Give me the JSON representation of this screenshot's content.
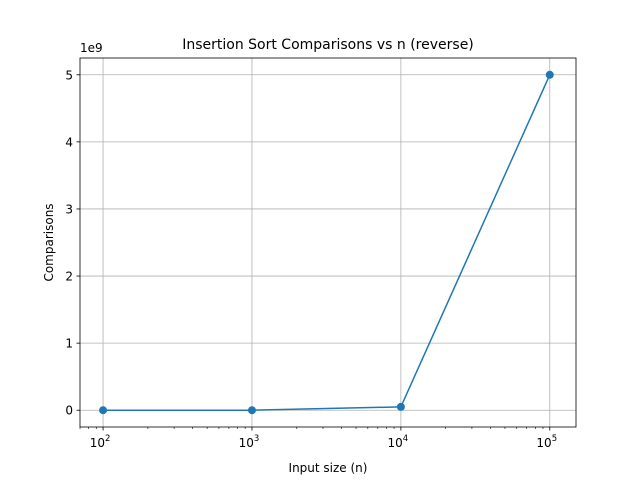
{
  "chart_data": {
    "type": "line",
    "title": "Insertion Sort Comparisons vs n (reverse)",
    "xlabel": "Input size (n)",
    "ylabel": "Comparisons",
    "xscale": "log",
    "x_ticks": [
      {
        "value": 100,
        "base": "10",
        "exp": "2"
      },
      {
        "value": 1000,
        "base": "10",
        "exp": "3"
      },
      {
        "value": 10000,
        "base": "10",
        "exp": "4"
      },
      {
        "value": 100000,
        "base": "10",
        "exp": "5"
      }
    ],
    "y_ticks": [
      0,
      1,
      2,
      3,
      4,
      5
    ],
    "y_tick_labels": [
      "0",
      "1",
      "2",
      "3",
      "4",
      "5"
    ],
    "y_offset_label": "1e9",
    "xlim": [
      70,
      150000
    ],
    "ylim": [
      -250000000,
      5250000000
    ],
    "grid": true,
    "series": [
      {
        "name": "comparisons",
        "x": [
          100,
          1000,
          10000,
          100000
        ],
        "values": [
          4950,
          499500,
          49995000,
          4999950000
        ],
        "color": "#1f77b4"
      }
    ]
  }
}
